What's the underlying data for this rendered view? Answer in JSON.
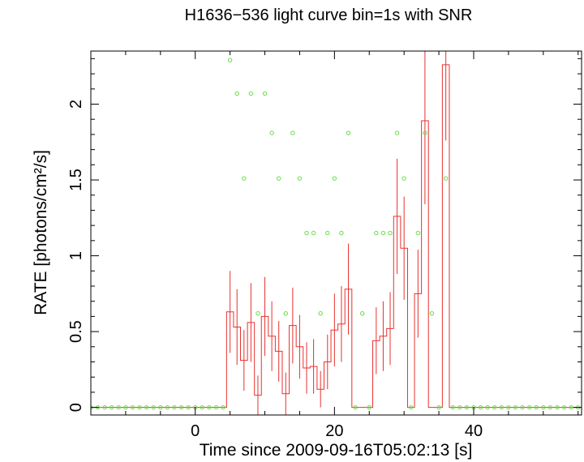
{
  "chart_data": {
    "type": "line",
    "title": "H1636−536 light curve bin=1s with SNR",
    "xlabel": "Time since 2009-09-16T05:02:13 [s]",
    "ylabel": "RATE [photons/cm²/s]",
    "xlim": [
      -15,
      55.5
    ],
    "ylim": [
      -0.05,
      2.35
    ],
    "xticks": [
      0,
      20,
      40
    ],
    "xtick_labels": [
      "0",
      "20",
      "40"
    ],
    "yticks": [
      0,
      0.5,
      1,
      1.5,
      2
    ],
    "ytick_labels": [
      "0",
      "0.5",
      "1",
      "1.5",
      "2"
    ],
    "grid": false,
    "legend": "none",
    "series": [
      {
        "style": "step-histogram-with-errorbars",
        "color": "#e8312f",
        "bin_width": 1,
        "x": [
          -15,
          -14,
          -13,
          -12,
          -11,
          -10,
          -9,
          -8,
          -7,
          -6,
          -5,
          -4,
          -3,
          -2,
          -1,
          0,
          1,
          2,
          3,
          4,
          5,
          6,
          7,
          8,
          9,
          10,
          11,
          12,
          13,
          14,
          15,
          16,
          17,
          18,
          19,
          20,
          21,
          22,
          23,
          24,
          25,
          26,
          27,
          28,
          29,
          30,
          31,
          32,
          33,
          34,
          35,
          36,
          37,
          38,
          39,
          40,
          41,
          42,
          43,
          44,
          45,
          46,
          47,
          48,
          49,
          50,
          51,
          52,
          53,
          54,
          55
        ],
        "y": [
          0,
          0,
          0,
          0,
          0,
          0,
          0,
          0,
          0,
          0,
          0,
          0,
          0,
          0,
          0,
          0,
          0,
          0,
          0,
          0,
          0.63,
          0.53,
          0.31,
          0.56,
          0.08,
          0.6,
          0.47,
          0.37,
          0.09,
          0.54,
          0.4,
          0.26,
          0.27,
          0.12,
          0.3,
          0.51,
          0.55,
          0.78,
          0,
          0,
          0,
          0.44,
          0.47,
          0.52,
          1.26,
          1.05,
          0,
          0.75,
          1.89,
          0,
          0,
          2.26,
          0,
          0,
          0,
          0,
          0,
          0,
          0,
          0,
          0,
          0,
          0,
          0,
          0,
          0,
          0,
          0,
          0,
          0,
          0
        ],
        "yerr": [
          0,
          0,
          0,
          0,
          0,
          0,
          0,
          0,
          0,
          0,
          0,
          0,
          0,
          0,
          0,
          0,
          0,
          0,
          0,
          0,
          0.27,
          0.25,
          0.2,
          0.26,
          0.13,
          0.26,
          0.23,
          0.2,
          0.14,
          0.25,
          0.21,
          0.17,
          0.18,
          0.12,
          0.18,
          0.24,
          0.25,
          0.3,
          0,
          0,
          0,
          0.22,
          0.23,
          0.24,
          0.38,
          0.34,
          0,
          0.29,
          0.55,
          0,
          0,
          0.5,
          0,
          0,
          0,
          0,
          0,
          0,
          0,
          0,
          0,
          0,
          0,
          0,
          0,
          0,
          0,
          0,
          0,
          0,
          0
        ]
      },
      {
        "style": "points",
        "color": "#66dd44",
        "x": [
          -15,
          -14,
          -13,
          -12,
          -11,
          -10,
          -9,
          -8,
          -7,
          -6,
          -5,
          -4,
          -3,
          -2,
          -1,
          0,
          1,
          2,
          3,
          4,
          5,
          6,
          7,
          8,
          9,
          10,
          11,
          12,
          13,
          14,
          15,
          16,
          17,
          18,
          19,
          20,
          21,
          22,
          23,
          24,
          25,
          26,
          27,
          28,
          29,
          30,
          31,
          32,
          33,
          34,
          35,
          36,
          37,
          38,
          39,
          40,
          41,
          42,
          43,
          44,
          45,
          46,
          47,
          48,
          49,
          50,
          51,
          52,
          53,
          54,
          55
        ],
        "y": [
          0,
          0,
          0,
          0,
          0,
          0,
          0,
          0,
          0,
          0,
          0,
          0,
          0,
          0,
          0,
          0,
          0,
          0,
          0,
          0,
          2.29,
          2.07,
          1.51,
          2.07,
          0.62,
          2.07,
          1.81,
          1.51,
          0.62,
          1.81,
          1.51,
          1.15,
          1.15,
          0.62,
          1.15,
          1.51,
          1.15,
          1.81,
          0,
          0.62,
          0,
          1.15,
          1.15,
          1.15,
          1.81,
          1.51,
          0,
          1.15,
          1.81,
          0.62,
          0,
          1.51,
          0,
          0,
          0,
          0,
          0,
          0,
          0,
          0,
          0,
          0,
          0,
          0,
          0,
          0,
          0,
          0,
          0,
          0,
          0
        ]
      }
    ]
  }
}
